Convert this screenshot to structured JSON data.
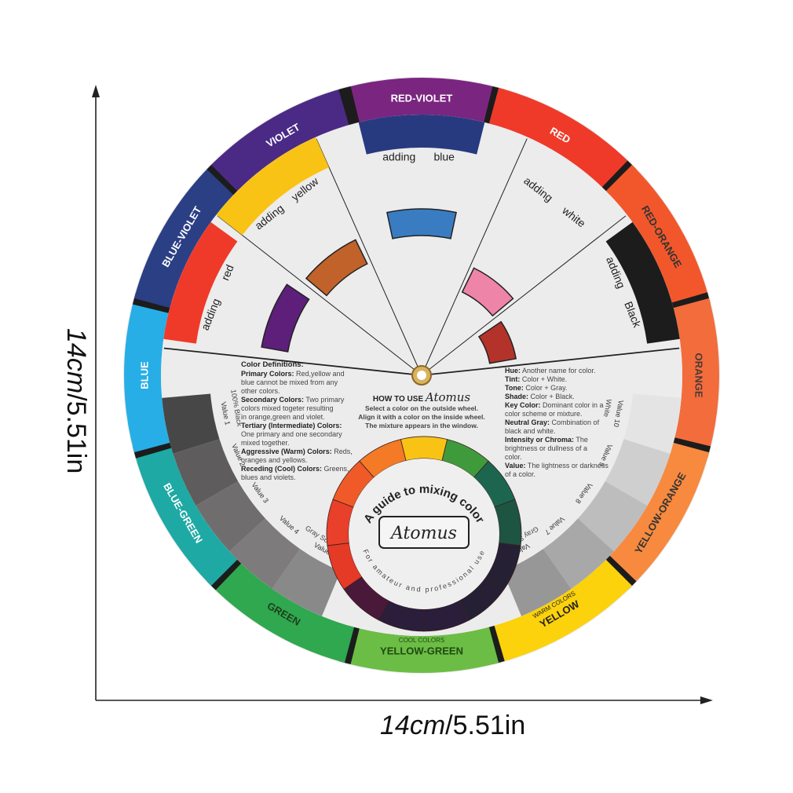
{
  "dimensions": {
    "width": {
      "value": "14cm",
      "alt": "/5.51in"
    },
    "height": {
      "value": "14cm",
      "alt": "/5.51in"
    }
  },
  "outer_ring": [
    {
      "label": "RED-VIOLET",
      "color": "#7a2680",
      "text_color": "#ffffff"
    },
    {
      "label": "RED",
      "color": "#ef3a2a",
      "text_color": "#ffffff"
    },
    {
      "label": "RED-ORANGE",
      "color": "#f2572b",
      "text_color": "#333333"
    },
    {
      "label": "ORANGE",
      "color": "#f36c3c",
      "text_color": "#4a3a36"
    },
    {
      "label": "YELLOW-ORANGE",
      "color": "#f78a3f",
      "text_color": "#333333"
    },
    {
      "label": "YELLOW",
      "color": "#fbd20c",
      "text_color": "#222222",
      "sub": "WARM COLORS"
    },
    {
      "label": "YELLOW-GREEN",
      "color": "#6cbd45",
      "text_color": "#1e4a12",
      "sub": "COOL COLORS"
    },
    {
      "label": "GREEN",
      "color": "#2fa84f",
      "text_color": "#1e3e1a"
    },
    {
      "label": "BLUE-GREEN",
      "color": "#1ea9a5",
      "text_color": "#ffffff"
    },
    {
      "label": "BLUE",
      "color": "#27aee6",
      "text_color": "#ffffff"
    },
    {
      "label": "BLUE-VIOLET",
      "color": "#2b3f85",
      "text_color": "#ffffff"
    },
    {
      "label": "VIOLET",
      "color": "#4b2a86",
      "text_color": "#ffffff"
    }
  ],
  "mixing_windows": [
    {
      "word1": "adding",
      "word2": "red",
      "swatch": "#5d1f7a"
    },
    {
      "word1": "adding",
      "word2": "yellow",
      "swatch": "#c0622a"
    },
    {
      "word1": "adding",
      "word2": "blue",
      "swatch": "#3a7cc2"
    },
    {
      "word1": "adding",
      "word2": "white",
      "swatch": "#ee84a8"
    },
    {
      "word1": "adding",
      "word2": "Black",
      "swatch": "#b3332a"
    }
  ],
  "gray_scale": {
    "left": [
      "Value 1",
      "Value 2",
      "Value 3",
      "Value 4",
      "Value 5"
    ],
    "left_captions": {
      "top": "100% Black",
      "bottom": "Gray Scale"
    },
    "right": [
      "Value 10",
      "Value 9",
      "Value 8",
      "Value 7",
      "Value 6"
    ],
    "right_captions": {
      "top": "White",
      "bottom": "Gray Scale"
    }
  },
  "definitions_left": {
    "title": "Color Definitions:",
    "items": [
      {
        "term": "Primary Colors:",
        "text": " Red,yellow and blue cannot be mixed from any other colors."
      },
      {
        "term": "Secondary Colors:",
        "text": " Two primary colors mixed togeter resulting in orange,green and violet."
      },
      {
        "term": "Tertiary (Intermediate) Colors:",
        "text": " One primary and one secondary mixed together."
      },
      {
        "term": "Aggressive (Warm) Colors:",
        "text": " Reds, oranges and yellows."
      },
      {
        "term": "Receding (Cool) Colors:",
        "text": " Greens, blues and violets."
      }
    ]
  },
  "definitions_right": {
    "items": [
      {
        "term": "Hue:",
        "text": " Another name for color."
      },
      {
        "term": "Tint:",
        "text": " Color + White."
      },
      {
        "term": "Tone:",
        "text": " Color + Gray."
      },
      {
        "term": "Shade:",
        "text": " Color + Black."
      },
      {
        "term": "Key Color:",
        "text": " Dominant color in a color scheme or mixture."
      },
      {
        "term": "Neutral Gray:",
        "text": " Combination of black and white."
      },
      {
        "term": "Intensity or Chroma:",
        "text": " The brightness or dullness of a color."
      },
      {
        "term": "Value:",
        "text": " The lightness or darkness of a color."
      }
    ]
  },
  "how_to_use": {
    "title": "HOW TO USE",
    "brand": "Atomus",
    "lines": [
      "Select a color on the outside wheel.",
      "Align it with a color on the inside wheel.",
      "The mixture appears in the window."
    ]
  },
  "center_badge": {
    "top_arc": "A guide to mixing color",
    "brand": "Atomus",
    "bottom_arc": "For amateur and professional use",
    "ring_colors": [
      "#f9c315",
      "#3f9a3c",
      "#1c6650",
      "#1d5442",
      "#252033",
      "#252033",
      "#2a1e3a",
      "#2a1e3a",
      "#4a1838",
      "#e43a26",
      "#e8402b",
      "#f05a28",
      "#f47a26"
    ]
  }
}
